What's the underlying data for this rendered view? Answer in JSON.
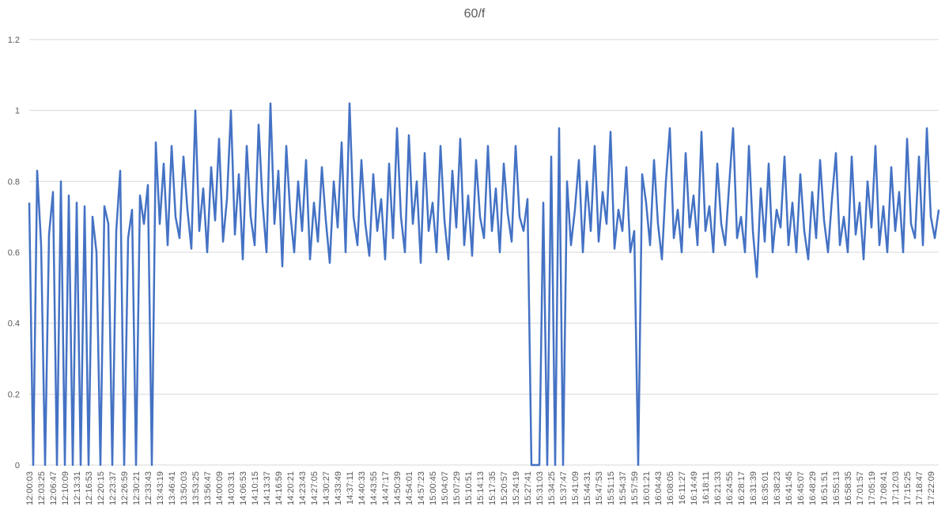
{
  "chart_data": {
    "type": "line",
    "title": "60/f",
    "categories": [
      "12:00:03",
      null,
      null,
      "12:03:25",
      null,
      null,
      "12:06:47",
      null,
      null,
      "12:10:09",
      null,
      null,
      "12:13:31",
      null,
      null,
      "12:16:53",
      null,
      null,
      "12:20:15",
      null,
      null,
      "12:23:37",
      null,
      null,
      "12:26:59",
      null,
      null,
      "12:30:21",
      null,
      null,
      "12:33:43",
      null,
      null,
      "13:43:19",
      null,
      null,
      "13:46:41",
      null,
      null,
      "13:50:03",
      null,
      null,
      "13:53:25",
      null,
      null,
      "13:56:47",
      null,
      null,
      "14:00:09",
      null,
      null,
      "14:03:31",
      null,
      null,
      "14:06:53",
      null,
      null,
      "14:10:15",
      null,
      null,
      "14:13:37",
      null,
      null,
      "14:16:59",
      null,
      null,
      "14:20:21",
      null,
      null,
      "14:23:43",
      null,
      null,
      "14:27:05",
      null,
      null,
      "14:30:27",
      null,
      null,
      "14:33:49",
      null,
      null,
      "14:37:11",
      null,
      null,
      "14:40:33",
      null,
      null,
      "14:43:55",
      null,
      null,
      "14:47:17",
      null,
      null,
      "14:50:39",
      null,
      null,
      "14:54:01",
      null,
      null,
      "14:57:23",
      null,
      null,
      "15:00:45",
      null,
      null,
      "15:04:07",
      null,
      null,
      "15:07:29",
      null,
      null,
      "15:10:51",
      null,
      null,
      "15:14:13",
      null,
      null,
      "15:17:35",
      null,
      null,
      "15:20:57",
      null,
      null,
      "15:24:19",
      null,
      null,
      "15:27:41",
      null,
      null,
      "15:31:03",
      null,
      null,
      "15:34:25",
      null,
      null,
      "15:37:47",
      null,
      null,
      "15:41:09",
      null,
      null,
      "15:44:31",
      null,
      null,
      "15:47:53",
      null,
      null,
      "15:51:15",
      null,
      null,
      "15:54:37",
      null,
      null,
      "15:57:59",
      null,
      null,
      "16:01:21",
      null,
      null,
      "16:04:43",
      null,
      null,
      "16:08:05",
      null,
      null,
      "16:11:27",
      null,
      null,
      "16:14:49",
      null,
      null,
      "16:18:11",
      null,
      null,
      "16:21:33",
      null,
      null,
      "16:24:55",
      null,
      null,
      "16:28:17",
      null,
      null,
      "16:31:39",
      null,
      null,
      "16:35:01",
      null,
      null,
      "16:38:23",
      null,
      null,
      "16:41:45",
      null,
      null,
      "16:45:07",
      null,
      null,
      "16:48:29",
      null,
      null,
      "16:51:51",
      null,
      null,
      "16:55:13",
      null,
      null,
      "16:58:35",
      null,
      null,
      "17:01:57",
      null,
      null,
      "17:05:19",
      null,
      null,
      "17:08:41",
      null,
      null,
      "17:12:03",
      null,
      null,
      "17:15:25",
      null,
      null,
      "17:18:47",
      null,
      null,
      "17:22:09",
      null,
      null
    ],
    "values": [
      0.74,
      0,
      0.83,
      0.62,
      0,
      0.65,
      0.77,
      0,
      0.8,
      0,
      0.76,
      0,
      0.74,
      0,
      0.73,
      0,
      0.7,
      0.6,
      0,
      0.73,
      0.68,
      0,
      0.66,
      0.83,
      0,
      0.64,
      0.72,
      0,
      0.76,
      0.68,
      0.79,
      0,
      0.91,
      0.68,
      0.85,
      0.62,
      0.9,
      0.7,
      0.64,
      0.87,
      0.72,
      0.61,
      1.0,
      0.66,
      0.78,
      0.6,
      0.84,
      0.69,
      0.92,
      0.63,
      0.75,
      1.0,
      0.65,
      0.82,
      0.58,
      0.9,
      0.7,
      0.62,
      0.96,
      0.74,
      0.6,
      1.02,
      0.68,
      0.83,
      0.56,
      0.9,
      0.71,
      0.6,
      0.8,
      0.66,
      0.86,
      0.58,
      0.74,
      0.63,
      0.84,
      0.69,
      0.57,
      0.8,
      0.67,
      0.91,
      0.6,
      1.02,
      0.7,
      0.62,
      0.86,
      0.68,
      0.59,
      0.82,
      0.66,
      0.75,
      0.58,
      0.85,
      0.64,
      0.95,
      0.7,
      0.6,
      0.93,
      0.68,
      0.8,
      0.57,
      0.88,
      0.66,
      0.74,
      0.6,
      0.9,
      0.69,
      0.58,
      0.83,
      0.67,
      0.92,
      0.62,
      0.76,
      0.59,
      0.86,
      0.7,
      0.64,
      0.9,
      0.66,
      0.78,
      0.6,
      0.85,
      0.71,
      0.63,
      0.9,
      0.7,
      0.66,
      0.75,
      0,
      0,
      0,
      0.74,
      0,
      0.87,
      0,
      0.95,
      0,
      0.8,
      0.62,
      0.72,
      0.86,
      0.6,
      0.8,
      0.66,
      0.9,
      0.63,
      0.77,
      0.68,
      0.94,
      0.61,
      0.72,
      0.66,
      0.84,
      0.6,
      0.66,
      0,
      0.82,
      0.74,
      0.62,
      0.86,
      0.68,
      0.58,
      0.8,
      0.95,
      0.64,
      0.72,
      0.6,
      0.88,
      0.67,
      0.76,
      0.62,
      0.94,
      0.66,
      0.73,
      0.6,
      0.85,
      0.68,
      0.62,
      0.79,
      0.95,
      0.64,
      0.7,
      0.6,
      0.9,
      0.66,
      0.53,
      0.78,
      0.63,
      0.85,
      0.6,
      0.72,
      0.67,
      0.87,
      0.62,
      0.74,
      0.6,
      0.82,
      0.66,
      0.58,
      0.77,
      0.64,
      0.86,
      0.69,
      0.6,
      0.75,
      0.88,
      0.62,
      0.7,
      0.6,
      0.87,
      0.65,
      0.74,
      0.58,
      0.8,
      0.67,
      0.9,
      0.62,
      0.73,
      0.6,
      0.84,
      0.66,
      0.77,
      0.6,
      0.92,
      0.68,
      0.64,
      0.87,
      0.62,
      0.95,
      0.7,
      0.64,
      0.72
    ],
    "color": "#4472c4",
    "ylim": [
      0,
      1.2
    ],
    "yticks": [
      0,
      0.2,
      0.4,
      0.6,
      0.8,
      1,
      1.2
    ],
    "grid": true
  }
}
